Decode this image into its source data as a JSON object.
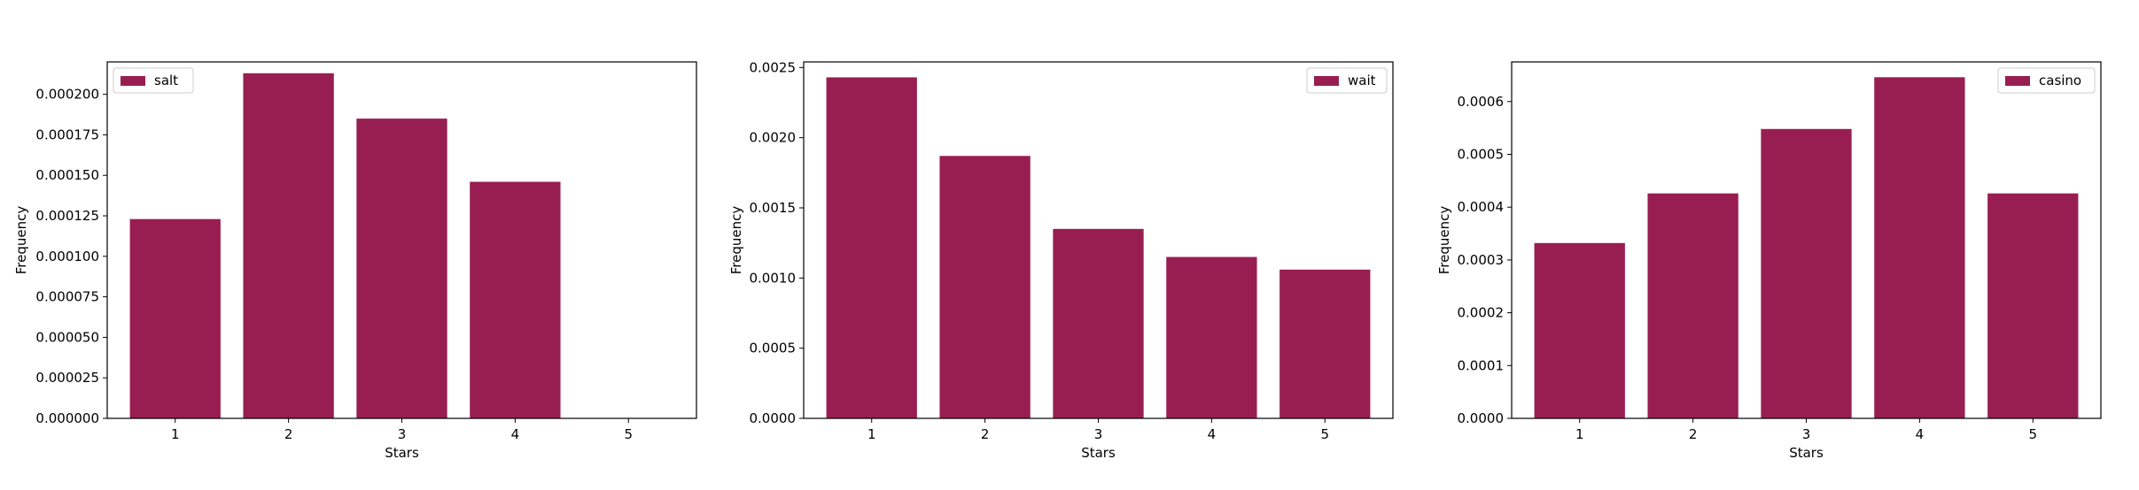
{
  "chart_data": [
    {
      "type": "bar",
      "categories": [
        "1",
        "2",
        "3",
        "4",
        "5"
      ],
      "series": [
        {
          "name": "salt",
          "values": [
            0.000123,
            0.000213,
            0.000185,
            0.000146,
            0.0
          ]
        }
      ],
      "xlabel": "Stars",
      "ylabel": "Frequency",
      "ylim": [
        0,
        0.00022
      ],
      "yticks": [
        "0.000000",
        "0.000025",
        "0.000050",
        "0.000075",
        "0.000100",
        "0.000125",
        "0.000150",
        "0.000175",
        "0.000200"
      ],
      "ytick_values": [
        0,
        2.5e-05,
        5e-05,
        7.5e-05,
        0.0001,
        0.000125,
        0.00015,
        0.000175,
        0.0002
      ],
      "grid": false,
      "legend": "upper-left",
      "bar_color": "#981e52"
    },
    {
      "type": "bar",
      "categories": [
        "1",
        "2",
        "3",
        "4",
        "5"
      ],
      "series": [
        {
          "name": "wait",
          "values": [
            0.00243,
            0.00187,
            0.00135,
            0.00115,
            0.00106
          ]
        }
      ],
      "xlabel": "Stars",
      "ylabel": "Frequency",
      "ylim": [
        0,
        0.00254
      ],
      "yticks": [
        "0.0000",
        "0.0005",
        "0.0010",
        "0.0015",
        "0.0020",
        "0.0025"
      ],
      "ytick_values": [
        0,
        0.0005,
        0.001,
        0.0015,
        0.002,
        0.0025
      ],
      "grid": false,
      "legend": "upper-right",
      "bar_color": "#981e52"
    },
    {
      "type": "bar",
      "categories": [
        "1",
        "2",
        "3",
        "4",
        "5"
      ],
      "series": [
        {
          "name": "casino",
          "values": [
            0.000332,
            0.000426,
            0.000548,
            0.000646,
            0.000426
          ]
        }
      ],
      "xlabel": "Stars",
      "ylabel": "Frequency",
      "ylim": [
        0,
        0.000675
      ],
      "yticks": [
        "0.0000",
        "0.0001",
        "0.0002",
        "0.0003",
        "0.0004",
        "0.0005",
        "0.0006"
      ],
      "ytick_values": [
        0,
        0.0001,
        0.0002,
        0.0003,
        0.0004,
        0.0005,
        0.0006
      ],
      "grid": false,
      "legend": "upper-right",
      "bar_color": "#981e52"
    }
  ]
}
